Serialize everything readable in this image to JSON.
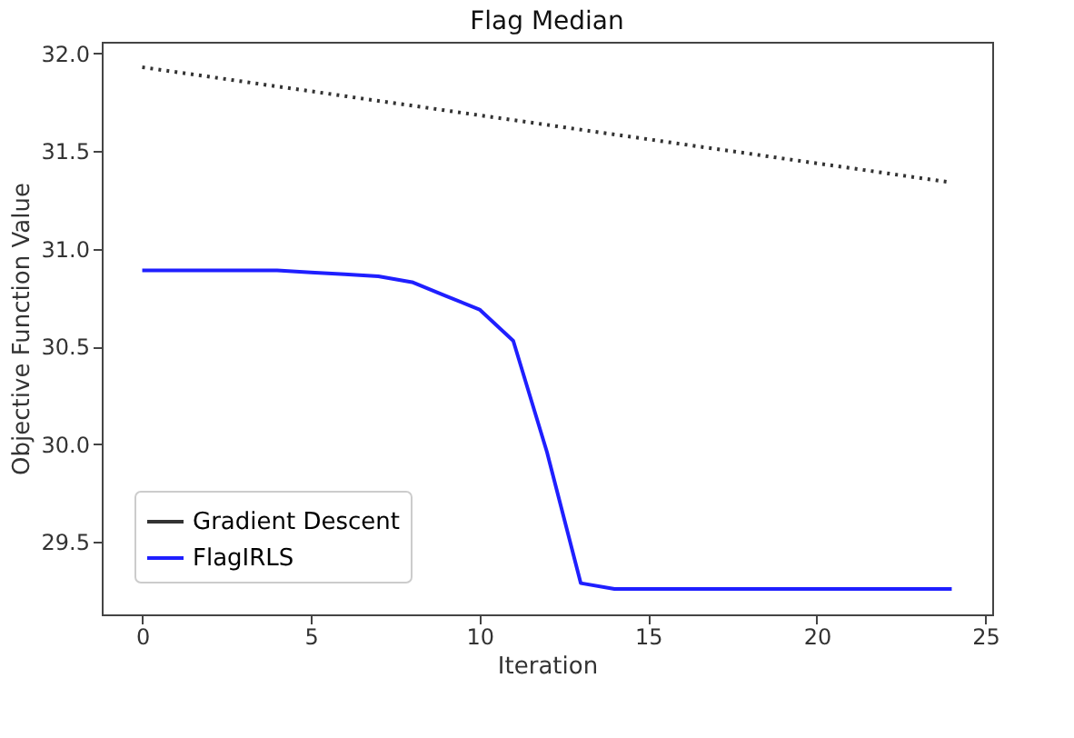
{
  "chart_data": {
    "type": "line",
    "title": "Flag Median",
    "xlabel": "Iteration",
    "ylabel": "Objective Function Value",
    "xlim": [
      -1.2,
      25.2
    ],
    "xticks": [
      0,
      5,
      10,
      15,
      20,
      25
    ],
    "ylim": [
      29.13,
      32.06
    ],
    "yticks": [
      29.5,
      {
        "value": 30,
        "label": "30.0"
      },
      30.5,
      {
        "value": 31,
        "label": "31.0"
      },
      31.5,
      {
        "value": 32,
        "label": "32.0"
      }
    ],
    "grid": false,
    "legend": "bottom left",
    "marker": "none",
    "series": [
      {
        "name": "Gradient Descent",
        "color": "#333333",
        "line_style": "dotted",
        "x": [
          0,
          24
        ],
        "values": [
          31.93,
          31.34
        ]
      },
      {
        "name": "FlagIRLS",
        "color": "#1f1fff",
        "line_style": "solid",
        "x": [
          0,
          1,
          2,
          3,
          4,
          5,
          6,
          7,
          8,
          9,
          10,
          11,
          12,
          13,
          14,
          15,
          16,
          17,
          18,
          19,
          20,
          21,
          22,
          23,
          24
        ],
        "values": [
          30.89,
          30.89,
          30.89,
          30.89,
          30.89,
          30.88,
          30.87,
          30.86,
          30.83,
          30.76,
          30.69,
          30.53,
          29.96,
          29.29,
          29.26,
          29.26,
          29.26,
          29.26,
          29.26,
          29.26,
          29.26,
          29.26,
          29.26,
          29.26,
          29.26
        ]
      }
    ]
  }
}
